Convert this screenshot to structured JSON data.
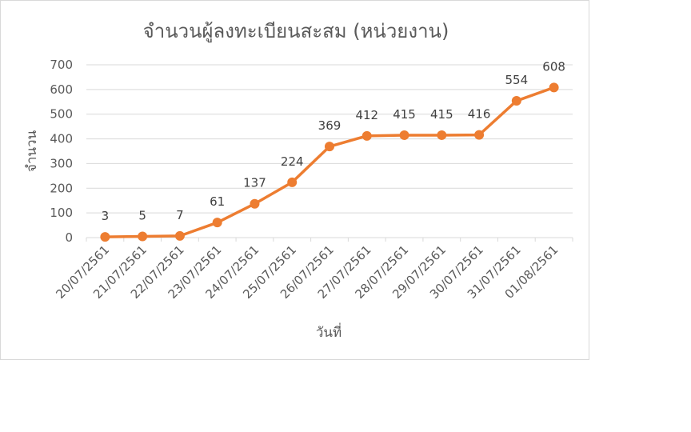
{
  "chart_data": {
    "type": "line",
    "title": "จำนวนผู้ลงทะเบียนสะสม (หน่วยงาน)",
    "xlabel": "วันที่",
    "ylabel": "จำนวน",
    "categories": [
      "20/07/2561",
      "21/07/2561",
      "22/07/2561",
      "23/07/2561",
      "24/07/2561",
      "25/07/2561",
      "26/07/2561",
      "27/07/2561",
      "28/07/2561",
      "29/07/2561",
      "30/07/2561",
      "31/07/2561",
      "01/08/2561"
    ],
    "values": [
      3,
      5,
      7,
      61,
      137,
      224,
      369,
      412,
      415,
      415,
      416,
      554,
      608
    ],
    "ylim": [
      0,
      700
    ],
    "yticks": [
      0,
      100,
      200,
      300,
      400,
      500,
      600,
      700
    ],
    "grid": true,
    "legend": "none",
    "colors": {
      "series": "#ed7d31",
      "grid": "#d9d9d9",
      "text": "#595959"
    }
  }
}
